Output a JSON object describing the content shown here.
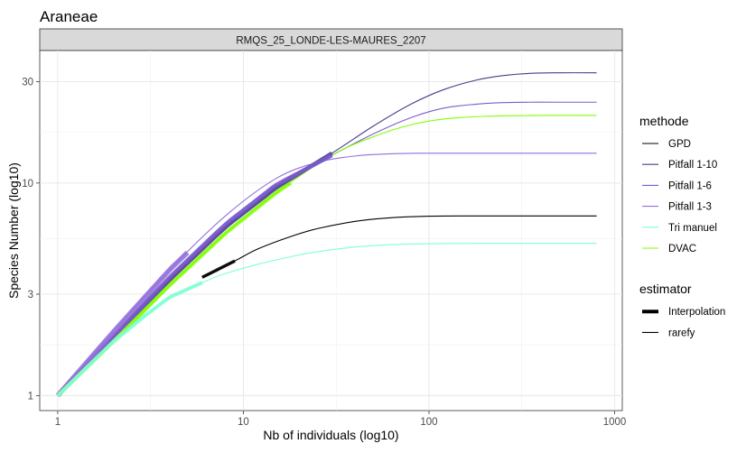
{
  "chart_data": {
    "type": "line",
    "title": "Araneae",
    "facet_label": "RMQS_25_LONDE-LES-MAURES_2207",
    "xlabel": "Nb of individuals (log10)",
    "ylabel": "Species Number (log10)",
    "x_scale": "log10",
    "y_scale": "log10",
    "xlim": [
      0.8,
      1100
    ],
    "ylim": [
      0.85,
      42
    ],
    "x_ticks": [
      {
        "value": 1,
        "label": "1"
      },
      {
        "value": 10,
        "label": "10"
      },
      {
        "value": 100,
        "label": "100"
      },
      {
        "value": 1000,
        "label": "1000"
      }
    ],
    "y_ticks": [
      {
        "value": 1,
        "label": "1"
      },
      {
        "value": 3,
        "label": "3"
      },
      {
        "value": 10,
        "label": "10"
      },
      {
        "value": 30,
        "label": "30"
      }
    ],
    "grid": true,
    "legend": {
      "placement": "right",
      "groups": [
        {
          "title": "methode",
          "entries": [
            {
              "label": "GPD",
              "color": "#000000"
            },
            {
              "label": "Pitfall 1-10",
              "color": "#483d8b"
            },
            {
              "label": "Pitfall 1-6",
              "color": "#7b5ccd"
            },
            {
              "label": "Pitfall 1-3",
              "color": "#9370db"
            },
            {
              "label": "Tri manuel",
              "color": "#7fffd4"
            },
            {
              "label": "DVAC",
              "color": "#7fff00"
            }
          ]
        },
        {
          "title": "estimator",
          "entries": [
            {
              "label": "Interpolation",
              "style": "thick"
            },
            {
              "label": "rarefy",
              "style": "thin"
            }
          ]
        }
      ]
    },
    "series": [
      {
        "name": "Pitfall 1-10",
        "color": "#483d8b",
        "n_obs": 30,
        "s_obs": 14,
        "x": [
          1,
          2,
          4,
          8,
          15,
          30,
          50,
          80,
          120,
          180,
          250,
          350,
          500,
          800
        ],
        "y": [
          1,
          1.9,
          3.5,
          6.2,
          9.5,
          13.8,
          18.5,
          23.5,
          27.5,
          30.5,
          32,
          32.8,
          33,
          33
        ]
      },
      {
        "name": "Pitfall 1-6",
        "color": "#7b5ccd",
        "n_obs": 30,
        "s_obs": 14,
        "x": [
          1,
          2,
          4,
          8,
          15,
          30,
          50,
          80,
          120,
          180,
          250,
          350,
          500,
          800
        ],
        "y": [
          1,
          1.9,
          3.6,
          6.4,
          9.8,
          13.5,
          17,
          20.3,
          22.5,
          23.5,
          23.9,
          24,
          24,
          24
        ]
      },
      {
        "name": "Pitfall 1-3",
        "color": "#9370db",
        "n_obs": 5,
        "s_obs": 5,
        "x": [
          1,
          2,
          4,
          8,
          15,
          25,
          40,
          60,
          90,
          150,
          300,
          800
        ],
        "y": [
          1,
          2,
          3.9,
          7,
          10.5,
          12.5,
          13.4,
          13.7,
          13.8,
          13.8,
          13.8,
          13.8
        ]
      },
      {
        "name": "DVAC",
        "color": "#7fff00",
        "n_obs": 18,
        "s_obs": 9.8,
        "x": [
          1,
          2,
          4,
          8,
          15,
          30,
          50,
          80,
          120,
          200,
          400,
          800
        ],
        "y": [
          1,
          1.8,
          3.3,
          5.8,
          9,
          13.5,
          16.5,
          18.8,
          20,
          20.6,
          20.8,
          20.8
        ]
      },
      {
        "name": "GPD",
        "color": "#000000",
        "n_obs": 9,
        "s_obs": 4.2,
        "x0": 6,
        "y0": 3.6,
        "x": [
          6,
          9,
          12,
          18,
          25,
          40,
          60,
          100,
          200,
          500,
          800
        ],
        "y": [
          3.6,
          4.3,
          4.9,
          5.6,
          6.1,
          6.6,
          6.85,
          6.98,
          7,
          7,
          7
        ]
      },
      {
        "name": "Tri manuel",
        "color": "#7fffd4",
        "n_obs": 6,
        "s_obs": 3.6,
        "x": [
          1,
          2,
          3,
          4,
          6,
          8,
          12,
          18,
          25,
          40,
          60,
          100,
          200,
          800
        ],
        "y": [
          1,
          1.8,
          2.4,
          2.9,
          3.4,
          3.75,
          4.15,
          4.5,
          4.75,
          5.0,
          5.12,
          5.18,
          5.2,
          5.2
        ]
      }
    ]
  }
}
